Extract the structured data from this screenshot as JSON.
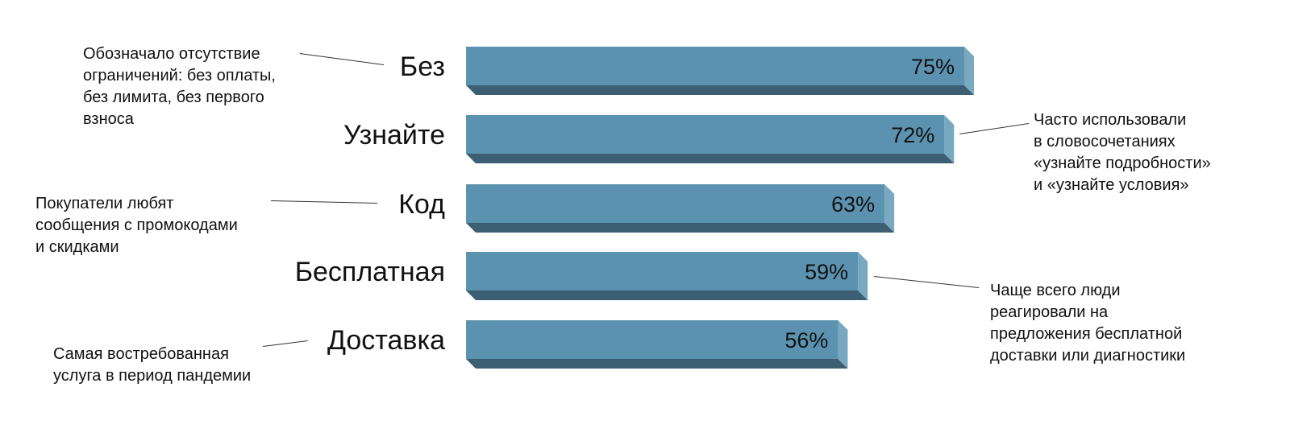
{
  "chart_data": {
    "type": "bar",
    "orientation": "horizontal",
    "categories": [
      "Без",
      "Узнайте",
      "Код",
      "Бесплатная",
      "Доставка"
    ],
    "values": [
      75,
      72,
      63,
      59,
      56
    ],
    "value_labels": [
      "75%",
      "72%",
      "63%",
      "59%",
      "56%"
    ],
    "unit": "%",
    "xlim": [
      0,
      100
    ],
    "grid": false,
    "legend": "none",
    "colors": {
      "front": "#5b92af",
      "side": "#78a9c1",
      "bottom": "#3c5f73"
    },
    "annotations": [
      {
        "category": "Без",
        "side": "left",
        "text": "Обозначало отсутствие\nограничений: без оплаты,\nбез лимита, без первого\nвзноса"
      },
      {
        "category": "Узнайте",
        "side": "right",
        "text": "Часто использовали\nв словосочетаниях\n«узнайте подробности»\nи «узнайте условия»"
      },
      {
        "category": "Код",
        "side": "left",
        "text": "Покупатели любят\nсообщения с промокодами\nи скидками"
      },
      {
        "category": "Бесплатная",
        "side": "right",
        "text": "Чаще всего люди\nреагировали на\nпредложения бесплатной\nдоставки или диагностики"
      },
      {
        "category": "Доставка",
        "side": "left",
        "text": "Самая востребованная\nуслуга в период пандемии"
      }
    ]
  }
}
